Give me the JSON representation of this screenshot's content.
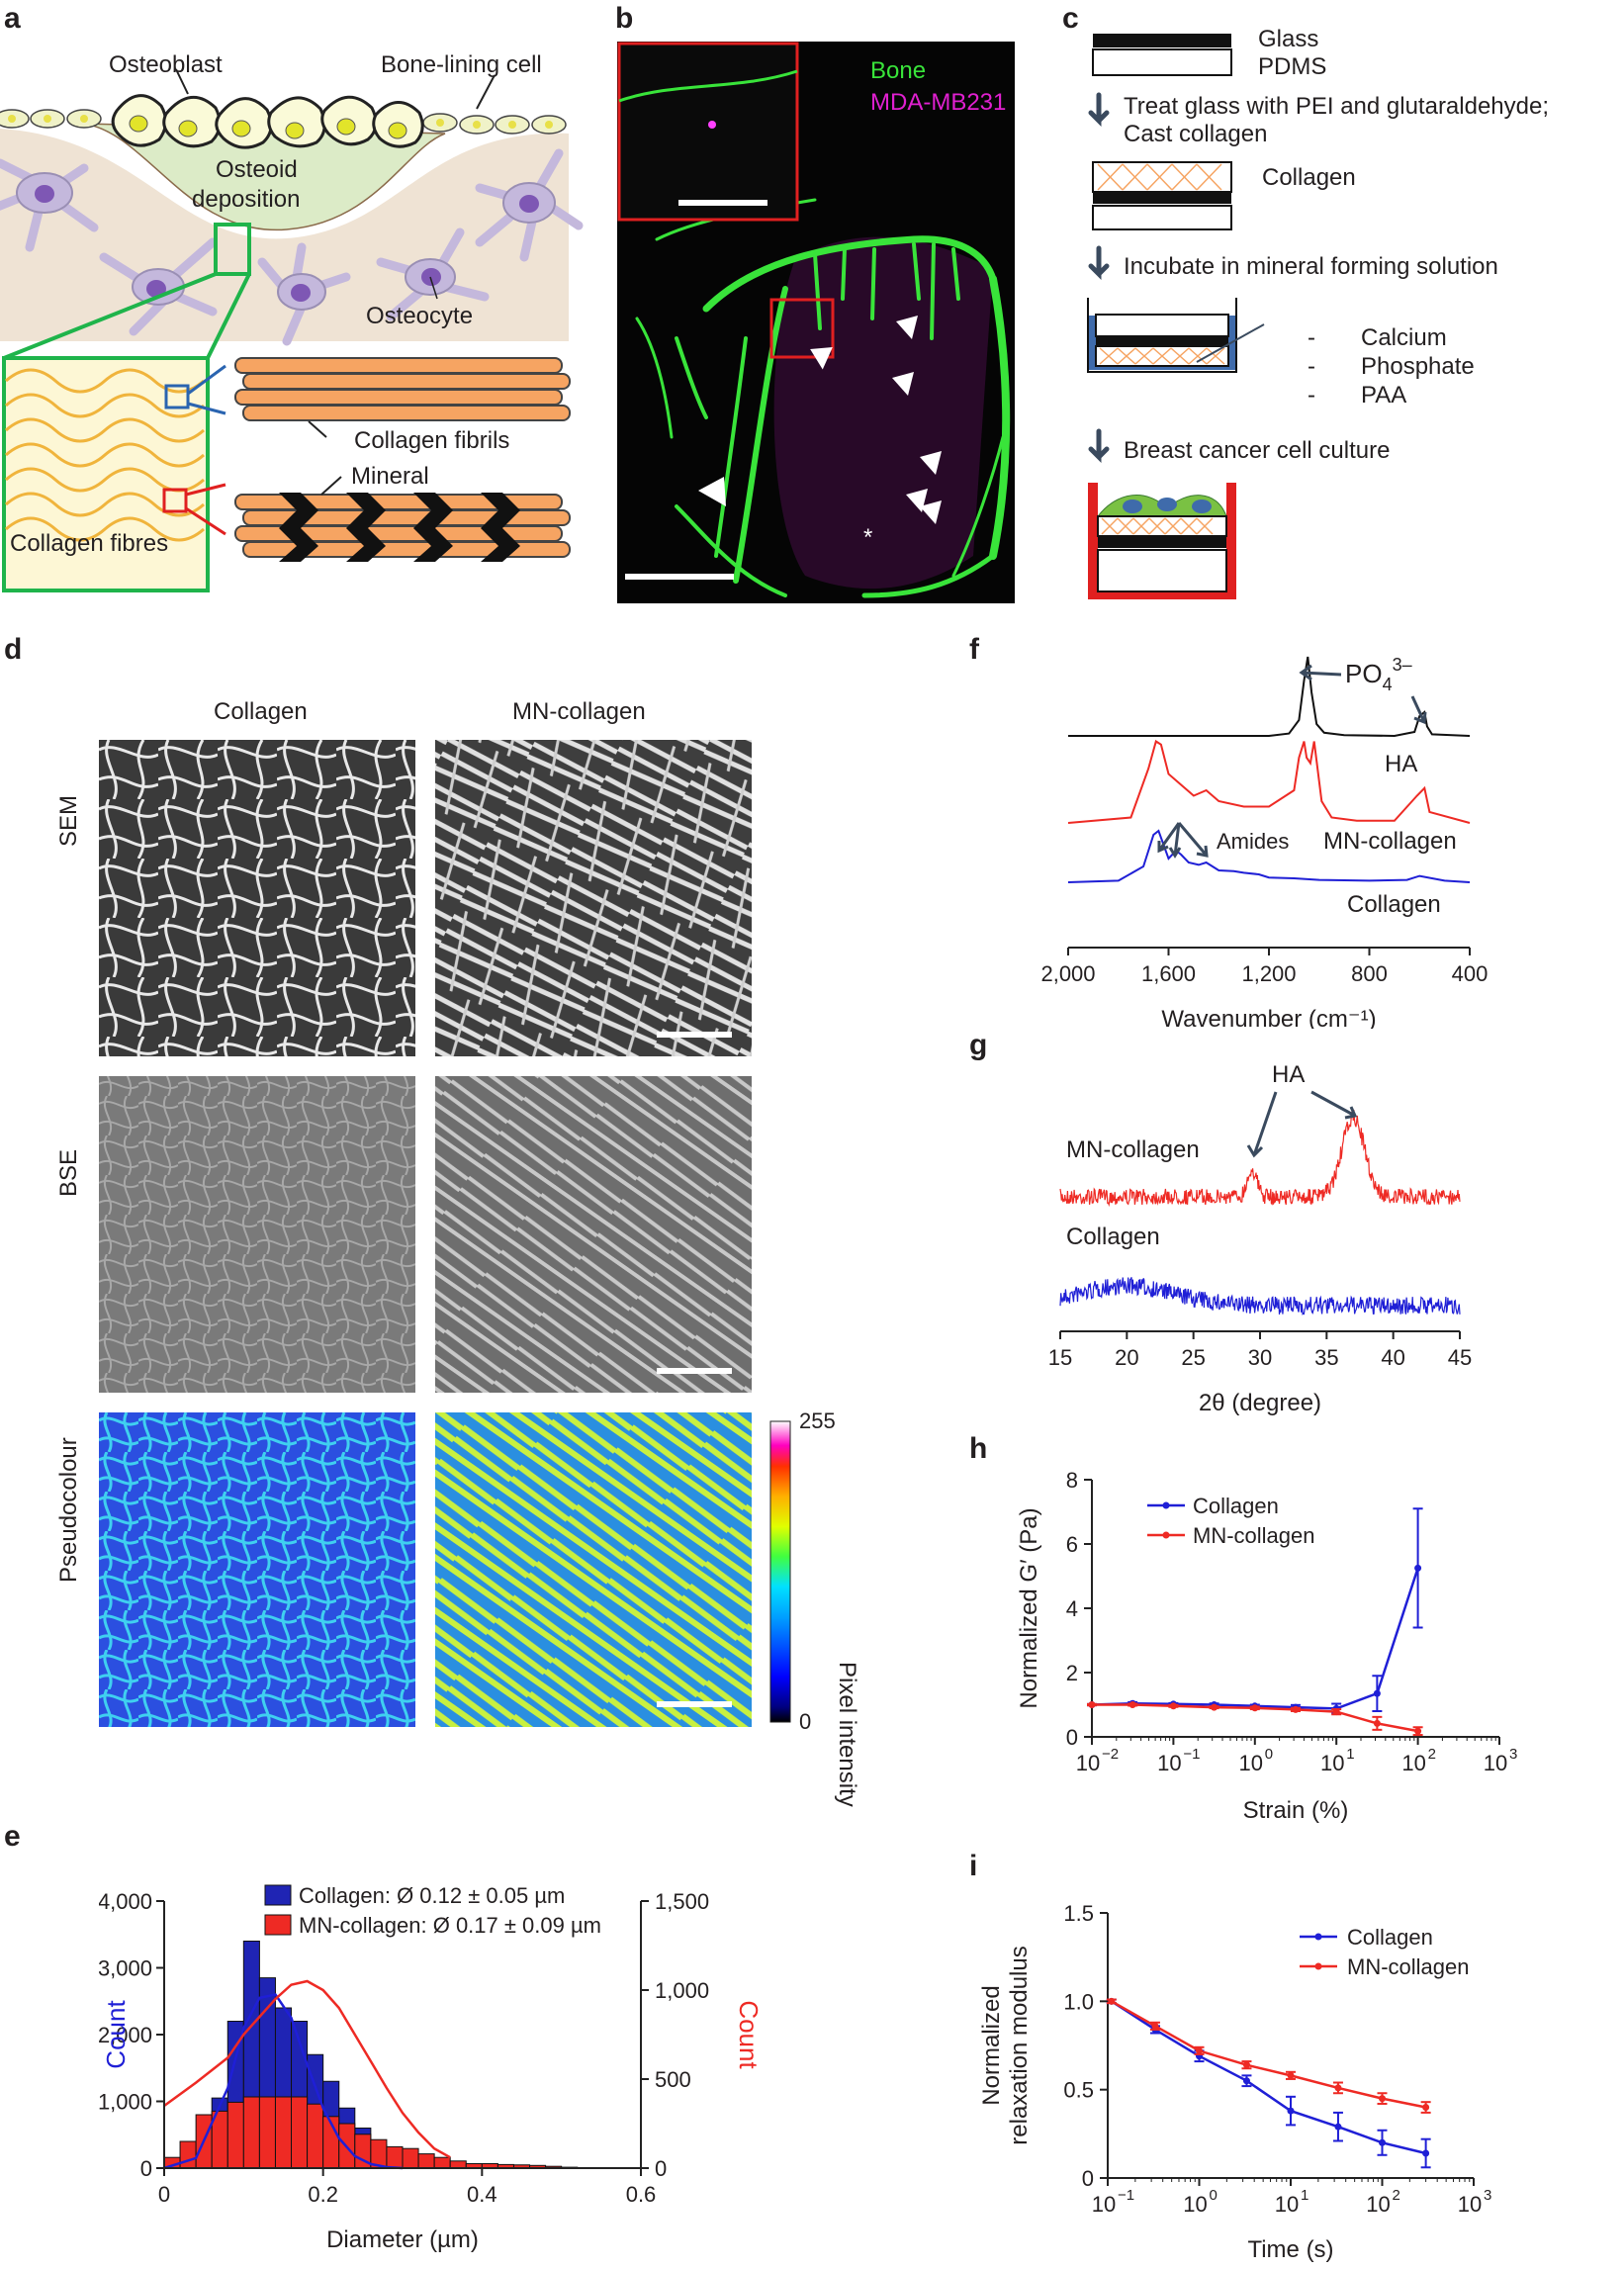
{
  "panels": {
    "a": "a",
    "b": "b",
    "c": "c",
    "d": "d",
    "e": "e",
    "f": "f",
    "g": "g",
    "h": "h",
    "i": "i"
  },
  "panel_a": {
    "osteoblast": "Osteoblast",
    "bone_lining": "Bone-lining cell",
    "osteoid1": "Osteoid",
    "osteoid2": "deposition",
    "osteocyte": "Osteocyte",
    "fibrils": "Collagen fibrils",
    "mineral": "Mineral",
    "fibres": "Collagen fibres"
  },
  "panel_b": {
    "bone": "Bone",
    "cells": "MDA-MB231",
    "asterisk": "*"
  },
  "panel_c": {
    "glass": "Glass",
    "pdms": "PDMS",
    "step1a": "Treat glass with PEI and glutaraldehyde;",
    "step1b": "Cast collagen",
    "collagen": "Collagen",
    "step2": "Incubate in mineral forming solution",
    "calcium": "Calcium",
    "phosphate": "Phosphate",
    "paa": "PAA",
    "dash": "-",
    "step3": "Breast cancer cell culture"
  },
  "panel_d": {
    "col1": "Collagen",
    "col2": "MN-collagen",
    "row1": "SEM",
    "row2": "BSE",
    "row3": "Pseudocolour",
    "cbar_max": "255",
    "cbar_min": "0",
    "cbar_label": "Pixel intensity"
  },
  "colors": {
    "blue": "#1f1fd6",
    "red": "#ee2a24",
    "green": "#1fb44b",
    "bone_green": "#39e43a",
    "magenta": "#e020d0",
    "orange": "#f6a462",
    "arrow": "#3a4a5e"
  },
  "chart_data": [
    {
      "id": "e",
      "type": "bar",
      "legend": [
        "Collagen: Ø 0.12 ± 0.05 µm",
        "MN-collagen: Ø 0.17 ± 0.09 µm"
      ],
      "xlabel": "Diameter (µm)",
      "ylabel_left": "Count",
      "ylabel_right": "Count",
      "xlim": [
        0,
        0.6
      ],
      "ylim_left": [
        0,
        4000
      ],
      "ylim_right": [
        0,
        1500
      ],
      "xticks": [
        "0",
        "0.2",
        "0.4",
        "0.6"
      ],
      "yticks_left": [
        "0",
        "1,000",
        "2,000",
        "3,000",
        "4,000"
      ],
      "yticks_right": [
        "0",
        "500",
        "1,000",
        "1,500"
      ],
      "bin_width": 0.02,
      "bin_starts": [
        0.0,
        0.02,
        0.04,
        0.06,
        0.08,
        0.1,
        0.12,
        0.14,
        0.16,
        0.18,
        0.2,
        0.22,
        0.24,
        0.26,
        0.28,
        0.3,
        0.32,
        0.34,
        0.36,
        0.38,
        0.4,
        0.42,
        0.44,
        0.46,
        0.48,
        0.5,
        0.52,
        0.54,
        0.56,
        0.58
      ],
      "series": [
        {
          "name": "Collagen",
          "axis": "left",
          "values": [
            50,
            150,
            400,
            1050,
            2200,
            3400,
            2850,
            2400,
            2200,
            1700,
            1300,
            900,
            600,
            350,
            200,
            100,
            50,
            20,
            10,
            5,
            0,
            0,
            0,
            0,
            0,
            0,
            0,
            0,
            0,
            0
          ]
        },
        {
          "name": "MN-collagen",
          "axis": "right",
          "values": [
            60,
            150,
            300,
            320,
            370,
            400,
            400,
            400,
            400,
            360,
            290,
            250,
            190,
            160,
            120,
            110,
            80,
            60,
            40,
            25,
            25,
            20,
            18,
            15,
            10,
            5,
            3,
            2,
            1,
            0
          ]
        }
      ],
      "fits": [
        {
          "name": "Collagen",
          "axis": "left",
          "x": [
            0.0,
            0.04,
            0.08,
            0.1,
            0.12,
            0.14,
            0.16,
            0.18,
            0.2,
            0.22,
            0.24,
            0.26,
            0.28,
            0.3
          ],
          "y": [
            0,
            150,
            1200,
            2100,
            2550,
            2600,
            2250,
            1550,
            900,
            450,
            180,
            60,
            15,
            0
          ]
        },
        {
          "name": "MN-collagen",
          "axis": "right",
          "x": [
            0.0,
            0.04,
            0.08,
            0.1,
            0.12,
            0.14,
            0.16,
            0.18,
            0.2,
            0.22,
            0.24,
            0.26,
            0.28,
            0.3,
            0.32,
            0.34,
            0.36
          ],
          "y": [
            350,
            480,
            620,
            750,
            850,
            950,
            1030,
            1050,
            1000,
            900,
            750,
            600,
            450,
            310,
            200,
            110,
            60
          ]
        }
      ]
    },
    {
      "id": "f",
      "type": "line",
      "xlabel": "Wavenumber (cm⁻¹)",
      "xlim": [
        2000,
        400
      ],
      "xticks": [
        "2,000",
        "1,600",
        "1,200",
        "800",
        "400"
      ],
      "annotations": [
        "PO",
        "4",
        "3–",
        "Amides"
      ],
      "series": [
        {
          "name": "HA",
          "x": [
            2000,
            1200,
            1120,
            1080,
            1060,
            1045,
            1030,
            1010,
            980,
            900,
            700,
            620,
            600,
            580,
            570,
            550,
            400
          ],
          "y": [
            0,
            0,
            0.03,
            0.2,
            0.7,
            1.0,
            0.55,
            0.15,
            0.04,
            0.01,
            0,
            0.05,
            0.25,
            0.3,
            0.12,
            0.02,
            0
          ]
        },
        {
          "name": "MN-collagen",
          "x": [
            2000,
            1750,
            1680,
            1650,
            1630,
            1600,
            1550,
            1500,
            1450,
            1400,
            1300,
            1200,
            1100,
            1080,
            1060,
            1050,
            1035,
            1020,
            990,
            950,
            850,
            700,
            610,
            580,
            560,
            400
          ],
          "y": [
            0,
            0.05,
            0.5,
            0.75,
            0.72,
            0.45,
            0.35,
            0.25,
            0.3,
            0.2,
            0.15,
            0.15,
            0.3,
            0.6,
            0.75,
            0.6,
            0.55,
            0.75,
            0.2,
            0.05,
            0.02,
            0.02,
            0.25,
            0.32,
            0.1,
            0
          ]
        },
        {
          "name": "Collagen",
          "x": [
            2000,
            1800,
            1700,
            1660,
            1640,
            1600,
            1570,
            1550,
            1520,
            1480,
            1450,
            1400,
            1340,
            1300,
            1240,
            1200,
            1100,
            1000,
            800,
            650,
            600,
            500,
            400
          ],
          "y": [
            0,
            0.02,
            0.2,
            0.6,
            0.65,
            0.3,
            0.4,
            0.35,
            0.25,
            0.22,
            0.25,
            0.15,
            0.14,
            0.12,
            0.1,
            0.06,
            0.05,
            0.03,
            0.02,
            0.03,
            0.08,
            0.02,
            0
          ]
        }
      ]
    },
    {
      "id": "g",
      "type": "line",
      "xlabel": "2θ (degree)",
      "xlim": [
        15,
        45
      ],
      "xticks": [
        "15",
        "20",
        "25",
        "30",
        "35",
        "40",
        "45"
      ],
      "annotations": [
        "HA"
      ],
      "series": [
        {
          "name": "MN-collagen",
          "peaks": [
            {
              "x": 29.4,
              "height": 0.35,
              "width": 0.5
            },
            {
              "x": 37.0,
              "height": 1.0,
              "width": 1.2
            }
          ]
        },
        {
          "name": "Collagen",
          "broad_max_x": 20
        }
      ]
    },
    {
      "id": "h",
      "type": "line",
      "xscale": "log",
      "xlabel": "Strain (%)",
      "ylabel": "Normalized G′ (Pa)",
      "xlim": [
        0.01,
        1000
      ],
      "ylim": [
        0,
        8
      ],
      "yticks": [
        "0",
        "2",
        "4",
        "6",
        "8"
      ],
      "xticks_exp": [
        "−2",
        "−1",
        "0",
        "1",
        "2",
        "3"
      ],
      "x": [
        0.01,
        0.0316,
        0.1,
        0.316,
        1,
        3.16,
        10,
        31.6,
        100
      ],
      "series": [
        {
          "name": "Collagen",
          "values": [
            1.0,
            1.04,
            1.02,
            1.0,
            0.96,
            0.92,
            0.88,
            1.35,
            5.25
          ],
          "errors": [
            0.02,
            0.04,
            0.03,
            0.04,
            0.04,
            0.07,
            0.15,
            0.55,
            1.85
          ]
        },
        {
          "name": "MN-collagen",
          "values": [
            1.0,
            1.0,
            0.96,
            0.92,
            0.9,
            0.85,
            0.78,
            0.42,
            0.18
          ],
          "errors": [
            0.02,
            0.03,
            0.03,
            0.03,
            0.04,
            0.05,
            0.08,
            0.2,
            0.12
          ]
        }
      ]
    },
    {
      "id": "i",
      "type": "line",
      "xscale": "log",
      "xlabel": "Time (s)",
      "ylabel_1": "Normalized",
      "ylabel_2": "relaxation modulus",
      "xlim": [
        0.1,
        1000
      ],
      "ylim": [
        0,
        1.5
      ],
      "yticks": [
        "0",
        "0.5",
        "1.0",
        "1.5"
      ],
      "xticks_exp": [
        "−1",
        "0",
        "1",
        "2",
        "3"
      ],
      "x": [
        0.11,
        0.33,
        1.0,
        3.3,
        10,
        33,
        100,
        300
      ],
      "series": [
        {
          "name": "Collagen",
          "values": [
            1.0,
            0.84,
            0.69,
            0.55,
            0.38,
            0.29,
            0.2,
            0.14
          ],
          "errors": [
            0.01,
            0.02,
            0.03,
            0.03,
            0.08,
            0.08,
            0.07,
            0.08
          ]
        },
        {
          "name": "MN-collagen",
          "values": [
            1.0,
            0.86,
            0.72,
            0.64,
            0.58,
            0.51,
            0.45,
            0.4
          ],
          "errors": [
            0.01,
            0.02,
            0.02,
            0.02,
            0.02,
            0.03,
            0.03,
            0.03
          ]
        }
      ]
    }
  ]
}
